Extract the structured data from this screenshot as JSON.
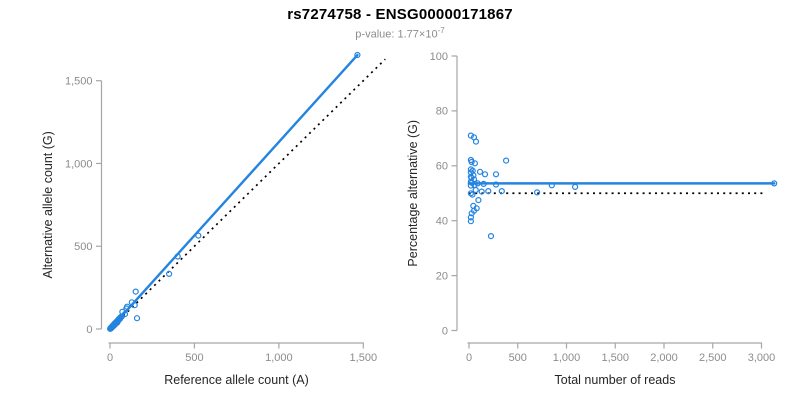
{
  "header": {
    "title": "rs7274758 - ENSG00000171867",
    "subtitle_text": "p-value: 1.77×10",
    "subtitle_exponent": "-7"
  },
  "colors": {
    "accent": "#2484e0",
    "identity": "#000000",
    "axis": "#a6a6a6",
    "tick_text": "#8c8c8c",
    "axis_label_text": "#262626",
    "subtitle_text": "#8c8c8c"
  },
  "chart_data": [
    {
      "type": "scatter",
      "name": "allele-counts",
      "xlabel": "Reference allele count (A)",
      "ylabel": "Alternative allele count (G)",
      "xlim": [
        0,
        1500
      ],
      "ylim": [
        0,
        1500
      ],
      "xticks": [
        0,
        500,
        1000,
        1500
      ],
      "xtick_labels": [
        "0",
        "500",
        "1,000",
        "1,500"
      ],
      "yticks": [
        0,
        500,
        1000,
        1500
      ],
      "ytick_labels": [
        "0",
        "500",
        "1,000",
        "1,500"
      ],
      "grid": false,
      "legend": "none",
      "points": [
        [
          1,
          1
        ],
        [
          2,
          2
        ],
        [
          3,
          4
        ],
        [
          4,
          3
        ],
        [
          5,
          6
        ],
        [
          6,
          5
        ],
        [
          7,
          8
        ],
        [
          8,
          9
        ],
        [
          9,
          8
        ],
        [
          10,
          11
        ],
        [
          11,
          13
        ],
        [
          12,
          10
        ],
        [
          13,
          15
        ],
        [
          14,
          13
        ],
        [
          15,
          17
        ],
        [
          16,
          15
        ],
        [
          17,
          19
        ],
        [
          18,
          21
        ],
        [
          19,
          17
        ],
        [
          20,
          23
        ],
        [
          21,
          20
        ],
        [
          22,
          25
        ],
        [
          23,
          22
        ],
        [
          24,
          27
        ],
        [
          25,
          29
        ],
        [
          26,
          24
        ],
        [
          27,
          31
        ],
        [
          28,
          26
        ],
        [
          29,
          33
        ],
        [
          30,
          35
        ],
        [
          31,
          29
        ],
        [
          32,
          37
        ],
        [
          34,
          33
        ],
        [
          36,
          41
        ],
        [
          38,
          36
        ],
        [
          40,
          46
        ],
        [
          42,
          44
        ],
        [
          44,
          40
        ],
        [
          46,
          52
        ],
        [
          48,
          50
        ],
        [
          50,
          57
        ],
        [
          52,
          55
        ],
        [
          54,
          61
        ],
        [
          56,
          59
        ],
        [
          58,
          66
        ],
        [
          60,
          63
        ],
        [
          62,
          70
        ],
        [
          65,
          73
        ],
        [
          69,
          75
        ],
        [
          73,
          104
        ],
        [
          89,
          90
        ],
        [
          97,
          124
        ],
        [
          101,
          135
        ],
        [
          129,
          161
        ],
        [
          146,
          144
        ],
        [
          152,
          226
        ],
        [
          160,
          65
        ],
        [
          350,
          333
        ],
        [
          401,
          438
        ],
        [
          523,
          564
        ],
        [
          1465,
          1655
        ]
      ],
      "lines": [
        {
          "name": "regression-line",
          "style": "solid",
          "width": 2.4,
          "color": "accent",
          "x1": 0,
          "y1": 0,
          "x2": 1465,
          "y2": 1655
        },
        {
          "name": "identity-line",
          "style": "dotted",
          "width": 1.7,
          "color": "identity",
          "x1": 0,
          "y1": 0,
          "x2": 1630,
          "y2": 1630
        }
      ]
    },
    {
      "type": "scatter",
      "name": "percentage-vs-reads",
      "xlabel": "Total number of reads",
      "ylabel": "Percentage alternative (G)",
      "xlim": [
        0,
        3000
      ],
      "ylim": [
        0,
        100
      ],
      "xticks": [
        0,
        500,
        1000,
        1500,
        2000,
        2500,
        3000
      ],
      "xtick_labels": [
        "0",
        "500",
        "1,000",
        "1,500",
        "2,000",
        "2,500",
        "3,000"
      ],
      "yticks": [
        0,
        20,
        40,
        60,
        80,
        100
      ],
      "ytick_labels": [
        "0",
        "20",
        "40",
        "60",
        "80",
        "100"
      ],
      "grid": false,
      "legend": "none",
      "points": [
        [
          20,
          71
        ],
        [
          51,
          70.4
        ],
        [
          72,
          68.8
        ],
        [
          20,
          62.1
        ],
        [
          27,
          61.4
        ],
        [
          61,
          60.9
        ],
        [
          380,
          61.9
        ],
        [
          20,
          58.7
        ],
        [
          38,
          58.2
        ],
        [
          20,
          57.6
        ],
        [
          113,
          57.8
        ],
        [
          164,
          56.9
        ],
        [
          277,
          56.9
        ],
        [
          20,
          56
        ],
        [
          25,
          55.6
        ],
        [
          45,
          56.5
        ],
        [
          51,
          55.1
        ],
        [
          20,
          54.2
        ],
        [
          30,
          53.8
        ],
        [
          55,
          53
        ],
        [
          89,
          53.6
        ],
        [
          150,
          53.4
        ],
        [
          277,
          53.2
        ],
        [
          849,
          52.9
        ],
        [
          1088,
          52.3
        ],
        [
          20,
          52.8
        ],
        [
          20,
          50
        ],
        [
          35,
          49.5
        ],
        [
          69,
          51.2
        ],
        [
          130,
          50.6
        ],
        [
          198,
          50.8
        ],
        [
          336,
          50.8
        ],
        [
          698,
          50.3
        ],
        [
          96,
          47.5
        ],
        [
          44,
          45.4
        ],
        [
          79,
          44.5
        ],
        [
          28,
          42.7
        ],
        [
          20,
          41.2
        ],
        [
          51,
          43.6
        ],
        [
          20,
          39.8
        ],
        [
          226,
          34.4
        ],
        [
          3130,
          53.6
        ]
      ],
      "lines": [
        {
          "name": "mean-percentage-line",
          "style": "solid",
          "width": 2.6,
          "color": "accent",
          "x1": 0,
          "y1": 53.6,
          "x2": 3130,
          "y2": 53.6
        },
        {
          "name": "expected-50pct-line",
          "style": "dotted",
          "width": 1.7,
          "color": "identity",
          "x1": 0,
          "y1": 50,
          "x2": 3050,
          "y2": 50
        }
      ]
    }
  ]
}
